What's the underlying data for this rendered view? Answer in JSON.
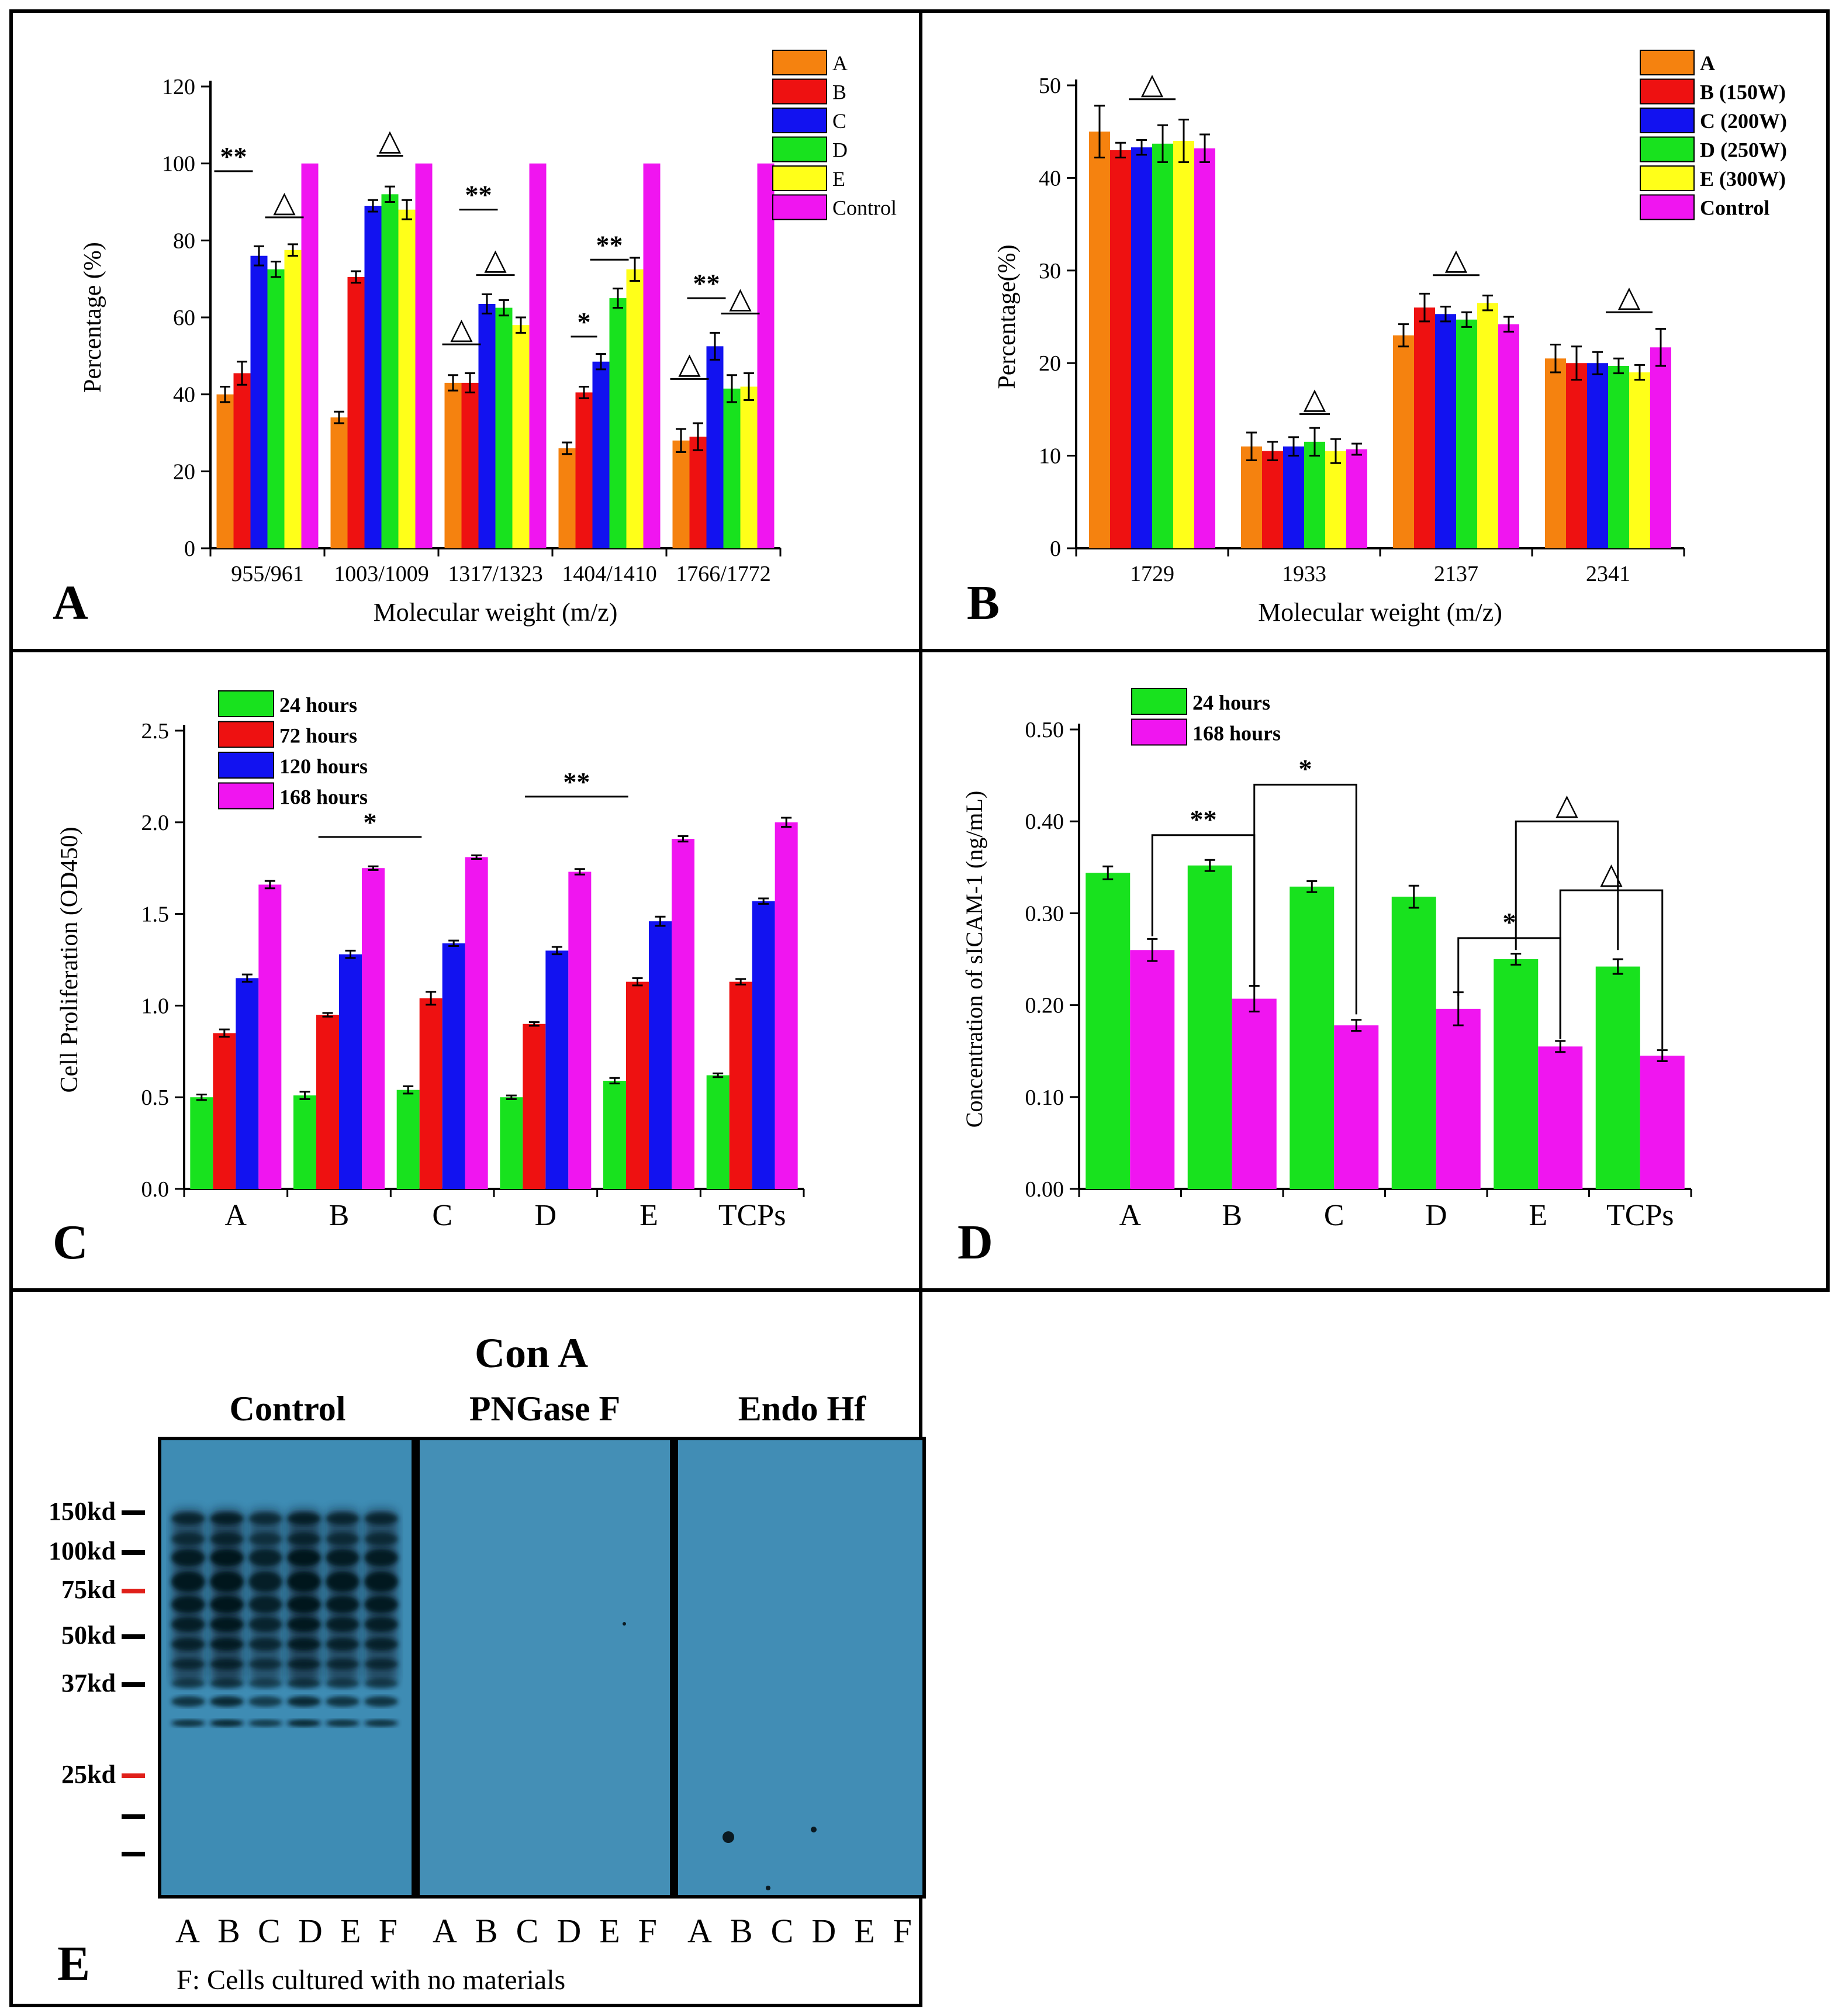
{
  "colors": {
    "orange": "#F5820F",
    "red": "#EE1111",
    "blue": "#1212F0",
    "green": "#18E21E",
    "yellow": "#FFFF19",
    "magenta": "#F015F0",
    "blot": "#3E8CB4"
  },
  "panels": {
    "A": {
      "label": "A"
    },
    "B": {
      "label": "B"
    },
    "C": {
      "label": "C"
    },
    "D": {
      "label": "D"
    },
    "E": {
      "label": "E"
    }
  },
  "chart_data": [
    {
      "id": "A",
      "type": "bar",
      "xlabel": "Molecular weight (m/z)",
      "ylabel": "Percentage (%)",
      "ylim": [
        0,
        120
      ],
      "yticks": [
        0,
        20,
        40,
        60,
        80,
        100,
        120
      ],
      "categories": [
        "955/961",
        "1003/1009",
        "1317/1323",
        "1404/1410",
        "1766/1772"
      ],
      "series": [
        {
          "name": "A",
          "color": "#F5820F",
          "values": [
            40,
            34,
            43,
            26,
            28
          ],
          "errors": [
            2,
            1.5,
            2,
            1.5,
            3
          ]
        },
        {
          "name": "B",
          "color": "#EE1111",
          "values": [
            45.5,
            70.5,
            43,
            40.5,
            29
          ],
          "errors": [
            3,
            1.5,
            2.5,
            1.5,
            3.5
          ]
        },
        {
          "name": "C",
          "color": "#1212F0",
          "values": [
            76,
            89,
            63.5,
            48.5,
            52.5
          ],
          "errors": [
            2.5,
            1.5,
            2.5,
            2,
            3.5
          ]
        },
        {
          "name": "D",
          "color": "#18E21E",
          "values": [
            72.5,
            92,
            62.5,
            65,
            41.5
          ],
          "errors": [
            2,
            2,
            2,
            2.5,
            3.5
          ]
        },
        {
          "name": "E",
          "color": "#FFFF19",
          "values": [
            77.5,
            88,
            58,
            72.5,
            42
          ],
          "errors": [
            1.5,
            2.5,
            2,
            3,
            3.5
          ]
        },
        {
          "name": "Control",
          "color": "#F015F0",
          "values": [
            100,
            100,
            100,
            100,
            100
          ],
          "errors": [
            0,
            0,
            0,
            0,
            0
          ]
        }
      ],
      "legend": "top-right",
      "annotations": [
        {
          "text": "**",
          "category": 0,
          "from_series": 0,
          "to_series": 1,
          "at_value": 98
        },
        {
          "text": "△",
          "category": 0,
          "from_series": 3,
          "to_series": 4,
          "at_value": 86
        },
        {
          "text": "△",
          "category": 1,
          "from_series": 3,
          "to_series": 3,
          "at_value": 102
        },
        {
          "text": "△",
          "category": 2,
          "from_series": 0,
          "to_series": 1,
          "at_value": 53
        },
        {
          "text": "**",
          "category": 2,
          "from_series": 1,
          "to_series": 2,
          "at_value": 88
        },
        {
          "text": "△",
          "category": 2,
          "from_series": 2,
          "to_series": 3,
          "at_value": 71
        },
        {
          "text": "*",
          "category": 3,
          "from_series": 1,
          "to_series": 1,
          "at_value": 55
        },
        {
          "text": "**",
          "category": 3,
          "from_series": 2,
          "to_series": 3,
          "at_value": 75
        },
        {
          "text": "△",
          "category": 4,
          "from_series": 0,
          "to_series": 1,
          "at_value": 44
        },
        {
          "text": "**",
          "category": 4,
          "from_series": 1,
          "to_series": 2,
          "at_value": 65
        },
        {
          "text": "△",
          "category": 4,
          "from_series": 3,
          "to_series": 4,
          "at_value": 61
        }
      ]
    },
    {
      "id": "B",
      "type": "bar",
      "xlabel": "Molecular weight (m/z)",
      "ylabel": "Percentage(%)",
      "ylim": [
        0,
        50
      ],
      "yticks": [
        0,
        10,
        20,
        30,
        40,
        50
      ],
      "categories": [
        "1729",
        "1933",
        "2137",
        "2341"
      ],
      "series": [
        {
          "name": "A",
          "color": "#F5820F",
          "values": [
            45,
            11,
            23,
            20.5
          ],
          "errors": [
            2.8,
            1.5,
            1.2,
            1.5
          ]
        },
        {
          "name": "B (150W)",
          "color": "#EE1111",
          "values": [
            43,
            10.5,
            26,
            20
          ],
          "errors": [
            0.8,
            1,
            1.5,
            1.8
          ]
        },
        {
          "name": "C (200W)",
          "color": "#1212F0",
          "values": [
            43.3,
            11,
            25.3,
            20
          ],
          "errors": [
            0.8,
            1,
            0.8,
            1.2
          ]
        },
        {
          "name": "D (250W)",
          "color": "#18E21E",
          "values": [
            43.7,
            11.5,
            24.7,
            19.7
          ],
          "errors": [
            2,
            1.5,
            0.8,
            0.8
          ]
        },
        {
          "name": "E (300W)",
          "color": "#FFFF19",
          "values": [
            44,
            10.5,
            26.5,
            19
          ],
          "errors": [
            2.3,
            1.3,
            0.8,
            0.8
          ]
        },
        {
          "name": "Control",
          "color": "#F015F0",
          "values": [
            43.2,
            10.7,
            24.2,
            21.7
          ],
          "errors": [
            1.5,
            0.6,
            0.8,
            2
          ]
        }
      ],
      "legend": "top-right",
      "annotations": [
        {
          "text": "△",
          "category": 0,
          "from_series": 2,
          "to_series": 3,
          "at_value": 48.5
        },
        {
          "text": "△",
          "category": 1,
          "from_series": 3,
          "to_series": 3,
          "at_value": 14.5
        },
        {
          "text": "△",
          "category": 2,
          "from_series": 2,
          "to_series": 3,
          "at_value": 29.5
        },
        {
          "text": "△",
          "category": 3,
          "from_series": 3,
          "to_series": 4,
          "at_value": 25.5
        }
      ]
    },
    {
      "id": "C",
      "type": "bar",
      "xlabel": "",
      "ylabel": "Cell Proliferation (OD450)",
      "ylim": [
        0,
        2.5
      ],
      "yticks": [
        0,
        0.5,
        1.0,
        1.5,
        2.0,
        2.5
      ],
      "yticklabels": [
        "0.0",
        "0.5",
        "1.0",
        "1.5",
        "2.0",
        "2.5"
      ],
      "categories": [
        "A",
        "B",
        "C",
        "D",
        "E",
        "TCPs"
      ],
      "series": [
        {
          "name": "24   hours",
          "color": "#18E21E",
          "values": [
            0.5,
            0.51,
            0.54,
            0.5,
            0.59,
            0.62
          ],
          "errors": [
            0.015,
            0.02,
            0.02,
            0.01,
            0.015,
            0.01
          ]
        },
        {
          "name": "72   hours",
          "color": "#EE1111",
          "values": [
            0.85,
            0.95,
            1.04,
            0.9,
            1.13,
            1.13
          ],
          "errors": [
            0.02,
            0.01,
            0.035,
            0.01,
            0.02,
            0.015
          ]
        },
        {
          "name": "120 hours",
          "color": "#1212F0",
          "values": [
            1.15,
            1.28,
            1.34,
            1.3,
            1.46,
            1.57
          ],
          "errors": [
            0.02,
            0.02,
            0.015,
            0.02,
            0.025,
            0.015
          ]
        },
        {
          "name": "168 hours",
          "color": "#F015F0",
          "values": [
            1.66,
            1.75,
            1.81,
            1.73,
            1.91,
            2.0
          ],
          "errors": [
            0.02,
            0.01,
            0.01,
            0.015,
            0.015,
            0.025
          ]
        }
      ],
      "legend": "top-left",
      "brackets": [
        {
          "text": "*",
          "from_category": 1.3,
          "to_category": 2.3,
          "at_value": 1.92
        },
        {
          "text": "**",
          "from_category": 3.3,
          "to_category": 4.3,
          "at_value": 2.14
        }
      ]
    },
    {
      "id": "D",
      "type": "bar",
      "xlabel": "",
      "ylabel": "Concentration of sICAM-1 (ng/mL)",
      "ylim": [
        0,
        0.5
      ],
      "yticks": [
        0,
        0.1,
        0.2,
        0.3,
        0.4,
        0.5
      ],
      "yticklabels": [
        "0.00",
        "0.10",
        "0.20",
        "0.30",
        "0.40",
        "0.50"
      ],
      "categories": [
        "A",
        "B",
        "C",
        "D",
        "E",
        "TCPs"
      ],
      "series": [
        {
          "name": "24   hours",
          "color": "#18E21E",
          "values": [
            0.344,
            0.352,
            0.329,
            0.318,
            0.25,
            0.242
          ],
          "errors": [
            0.007,
            0.006,
            0.006,
            0.012,
            0.006,
            0.008
          ]
        },
        {
          "name": "168 hours",
          "color": "#F015F0",
          "values": [
            0.26,
            0.207,
            0.178,
            0.196,
            0.155,
            0.145
          ],
          "errors": [
            0.012,
            0.014,
            0.006,
            0.018,
            0.006,
            0.006
          ]
        }
      ],
      "legend": "top-left",
      "brackets": [
        {
          "text": "**",
          "from": [
            0,
            1
          ],
          "to": [
            1,
            1
          ],
          "top": 0.385,
          "left_end": 0.275,
          "right_end": 0.22
        },
        {
          "text": "*",
          "from": [
            1,
            1
          ],
          "to": [
            2,
            1
          ],
          "top": 0.44,
          "left_end": 0.22,
          "right_end": 0.19
        },
        {
          "text": "*",
          "from": [
            3,
            1
          ],
          "to": [
            4,
            1
          ],
          "top": 0.273,
          "left_end": 0.21,
          "right_end": 0.163
        },
        {
          "text": "△",
          "from": [
            4,
            0
          ],
          "to": [
            5,
            0
          ],
          "top": 0.4,
          "left_end": 0.26,
          "right_end": 0.26
        },
        {
          "text": "△",
          "from": [
            4,
            1
          ],
          "to": [
            5,
            1
          ],
          "top": 0.325,
          "left_end": 0.163,
          "right_end": 0.152
        }
      ]
    }
  ],
  "blot": {
    "title": "Con A",
    "groups": [
      "Control",
      "PNGase F",
      "Endo Hf"
    ],
    "lanes": [
      "A",
      "B",
      "C",
      "D",
      "E",
      "F"
    ],
    "markers": [
      "150kd",
      "100kd",
      "75kd",
      "50kd",
      "37kd",
      "25kd",
      "",
      ""
    ],
    "red_markers": [
      "75kd",
      "25kd"
    ],
    "note": "F: Cells cultured with no materials"
  }
}
